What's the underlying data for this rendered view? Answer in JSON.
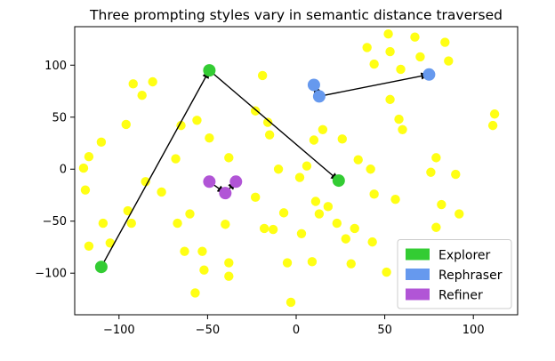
{
  "chart_data": {
    "type": "scatter",
    "title": "Three prompting styles vary in semantic distance traversed",
    "xlabel": "",
    "ylabel": "",
    "xlim": [
      -125,
      125
    ],
    "ylim": [
      -140,
      137
    ],
    "xticks": [
      -100,
      -50,
      0,
      50,
      100
    ],
    "yticks": [
      -100,
      -50,
      0,
      50,
      100
    ],
    "xtick_labels": [
      "−100",
      "−50",
      "0",
      "50",
      "100"
    ],
    "ytick_labels": [
      "−100",
      "−50",
      "0",
      "50",
      "100"
    ],
    "grid": false,
    "legend_position": "lower-right",
    "background_points": {
      "color": "#ffff14",
      "points": [
        [
          -120,
          1
        ],
        [
          -117,
          12
        ],
        [
          -119,
          -20
        ],
        [
          -117,
          -74
        ],
        [
          -110,
          26
        ],
        [
          -109,
          -52
        ],
        [
          -105,
          -71
        ],
        [
          -96,
          43
        ],
        [
          -92,
          82
        ],
        [
          -87,
          71
        ],
        [
          -81,
          84
        ],
        [
          -85,
          -12
        ],
        [
          -95,
          -40
        ],
        [
          -93,
          -52
        ],
        [
          -76,
          -22
        ],
        [
          -68,
          10
        ],
        [
          -65,
          42
        ],
        [
          -67,
          -52
        ],
        [
          -60,
          -43
        ],
        [
          -63,
          -79
        ],
        [
          -57,
          -119
        ],
        [
          -53,
          -79
        ],
        [
          -56,
          47
        ],
        [
          -49,
          30
        ],
        [
          -52,
          -97
        ],
        [
          -38,
          11
        ],
        [
          -40,
          -53
        ],
        [
          -38,
          -90
        ],
        [
          -38,
          -103
        ],
        [
          -23,
          -27
        ],
        [
          -23,
          56
        ],
        [
          -19,
          90
        ],
        [
          -18,
          -57
        ],
        [
          -16,
          45
        ],
        [
          -15,
          33
        ],
        [
          -13,
          -58
        ],
        [
          -10,
          0
        ],
        [
          -7,
          -42
        ],
        [
          -5,
          -90
        ],
        [
          -3,
          -128
        ],
        [
          2,
          -8
        ],
        [
          3,
          -62
        ],
        [
          6,
          3
        ],
        [
          9,
          -89
        ],
        [
          10,
          28
        ],
        [
          11,
          -31
        ],
        [
          13,
          -43
        ],
        [
          15,
          38
        ],
        [
          18,
          -36
        ],
        [
          23,
          -52
        ],
        [
          26,
          29
        ],
        [
          28,
          -67
        ],
        [
          31,
          -91
        ],
        [
          33,
          -57
        ],
        [
          35,
          9
        ],
        [
          42,
          0
        ],
        [
          43,
          -70
        ],
        [
          44,
          -24
        ],
        [
          40,
          117
        ],
        [
          44,
          101
        ],
        [
          51,
          -99
        ],
        [
          52,
          130
        ],
        [
          53,
          67
        ],
        [
          53,
          113
        ],
        [
          56,
          -29
        ],
        [
          58,
          48
        ],
        [
          59,
          96
        ],
        [
          60,
          38
        ],
        [
          67,
          127
        ],
        [
          70,
          108
        ],
        [
          76,
          -3
        ],
        [
          79,
          11
        ],
        [
          79,
          -56
        ],
        [
          82,
          -34
        ],
        [
          84,
          122
        ],
        [
          86,
          104
        ],
        [
          90,
          -5
        ],
        [
          92,
          -43
        ],
        [
          112,
          53
        ],
        [
          111,
          42
        ]
      ]
    },
    "series": [
      {
        "name": "Explorer",
        "color": "#33cc33",
        "points": [
          [
            -110,
            -94
          ],
          [
            -49,
            95
          ],
          [
            24,
            -11
          ]
        ]
      },
      {
        "name": "Rephraser",
        "color": "#6699ee",
        "points": [
          [
            10,
            81
          ],
          [
            13,
            70
          ],
          [
            75,
            91
          ]
        ]
      },
      {
        "name": "Refiner",
        "color": "#b155d6",
        "points": [
          [
            -49,
            -12
          ],
          [
            -40,
            -23
          ],
          [
            -34,
            -12
          ]
        ]
      }
    ],
    "arrows": [
      {
        "from": [
          -110,
          -94
        ],
        "to": [
          -49,
          95
        ]
      },
      {
        "from": [
          -49,
          95
        ],
        "to": [
          24,
          -11
        ]
      },
      {
        "from": [
          13,
          70
        ],
        "to": [
          10,
          81
        ]
      },
      {
        "from": [
          13,
          70
        ],
        "to": [
          75,
          91
        ]
      },
      {
        "from": [
          -49,
          -12
        ],
        "to": [
          -40,
          -23
        ]
      },
      {
        "from": [
          -40,
          -23
        ],
        "to": [
          -34,
          -12
        ]
      }
    ],
    "legend": [
      "Explorer",
      "Rephraser",
      "Refiner"
    ]
  }
}
